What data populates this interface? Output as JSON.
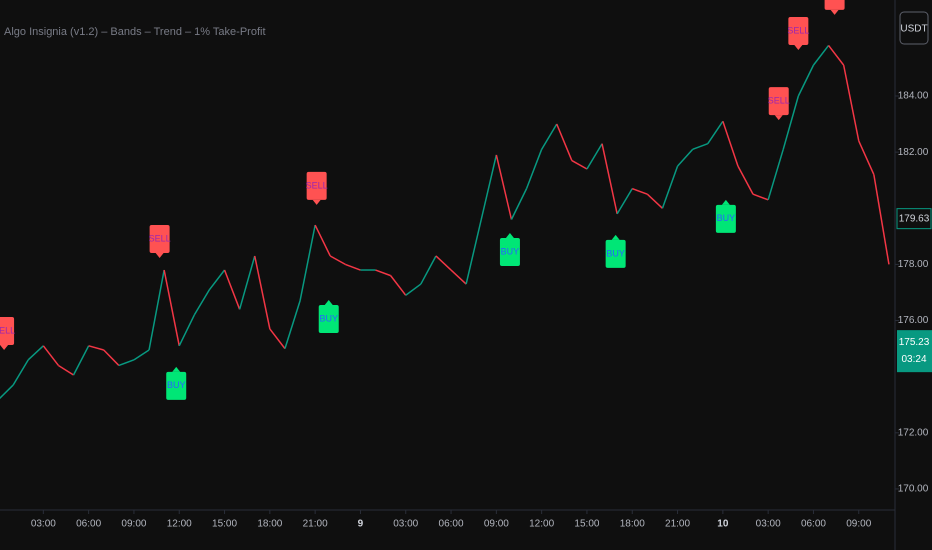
{
  "chart_data": {
    "type": "line",
    "title": "Algo Insignia (v1.2) – Bands – Trend – 1% Take-Profit",
    "currency": "USDT",
    "up_color": "#089981",
    "down_color": "#f23645",
    "x": [
      0,
      1,
      2,
      3,
      4,
      5,
      6,
      7,
      8,
      9,
      10,
      11,
      12,
      13,
      14,
      15,
      16,
      17,
      18,
      19,
      20,
      21,
      22,
      23,
      24,
      25,
      26,
      27,
      28,
      29,
      30,
      31,
      32,
      33,
      34,
      35,
      36,
      37,
      38,
      39,
      40,
      41,
      42,
      43,
      44,
      45,
      46,
      47,
      48,
      49,
      50,
      51,
      52,
      53,
      54,
      55,
      56,
      57,
      58,
      59
    ],
    "values": [
      173.17,
      173.7,
      174.6,
      175.1,
      174.4,
      174.06,
      175.1,
      174.95,
      174.4,
      174.6,
      174.95,
      177.8,
      175.1,
      176.2,
      177.1,
      177.8,
      176.4,
      178.3,
      175.7,
      175.0,
      176.7,
      179.4,
      178.3,
      178.0,
      177.8,
      177.8,
      177.6,
      176.9,
      177.3,
      178.3,
      177.8,
      177.3,
      179.6,
      181.9,
      179.6,
      180.7,
      182.1,
      183.0,
      181.7,
      181.4,
      182.3,
      179.8,
      180.7,
      180.5,
      180.0,
      181.5,
      182.1,
      182.3,
      183.1,
      181.5,
      180.5,
      180.3,
      182.1,
      184.0,
      185.1,
      185.8,
      185.1,
      182.4,
      181.2,
      178.0
    ],
    "xlim": [
      0.13,
      59.4
    ],
    "ylim": [
      169.25,
      187.42
    ],
    "xticks": [
      {
        "value": 3,
        "label": "03:00"
      },
      {
        "value": 6,
        "label": "06:00"
      },
      {
        "value": 9,
        "label": "09:00"
      },
      {
        "value": 12,
        "label": "12:00"
      },
      {
        "value": 15,
        "label": "15:00"
      },
      {
        "value": 18,
        "label": "18:00"
      },
      {
        "value": 21,
        "label": "21:00"
      },
      {
        "value": 24,
        "label": "9"
      },
      {
        "value": 27,
        "label": "03:00"
      },
      {
        "value": 30,
        "label": "06:00"
      },
      {
        "value": 33,
        "label": "09:00"
      },
      {
        "value": 36,
        "label": "12:00"
      },
      {
        "value": 39,
        "label": "15:00"
      },
      {
        "value": 42,
        "label": "18:00"
      },
      {
        "value": 45,
        "label": "21:00"
      },
      {
        "value": 48,
        "label": "10"
      },
      {
        "value": 51,
        "label": "03:00"
      },
      {
        "value": 54,
        "label": "06:00"
      },
      {
        "value": 57,
        "label": "09:00"
      }
    ],
    "yticks": [
      {
        "value": 170,
        "label": "170.00"
      },
      {
        "value": 172,
        "label": "172.00"
      },
      {
        "value": 176,
        "label": "176.00"
      },
      {
        "value": 178,
        "label": "178.00"
      },
      {
        "value": 182,
        "label": "182.00"
      },
      {
        "value": 184,
        "label": "184.00"
      }
    ],
    "signals": [
      {
        "label": "SELL",
        "x": 0.4,
        "y": 174.95
      },
      {
        "label": "SELL",
        "x": 10.7,
        "y": 178.23
      },
      {
        "label": "BUY",
        "x": 11.8,
        "y": 174.35
      },
      {
        "label": "SELL",
        "x": 21.1,
        "y": 180.12
      },
      {
        "label": "BUY",
        "x": 21.9,
        "y": 176.73
      },
      {
        "label": "BUY",
        "x": 33.9,
        "y": 179.12
      },
      {
        "label": "BUY",
        "x": 40.9,
        "y": 179.05
      },
      {
        "label": "BUY",
        "x": 48.2,
        "y": 180.3
      },
      {
        "label": "SELL",
        "x": 51.7,
        "y": 183.14
      },
      {
        "label": "SELL",
        "x": 53.0,
        "y": 185.64
      },
      {
        "label": "SELL",
        "x": 55.4,
        "y": 186.89
      }
    ],
    "price_lines": [
      {
        "value": 179.63,
        "label": "179.63"
      },
      {
        "value": 175.23,
        "label": "175.23"
      }
    ],
    "countdown": "03:24"
  }
}
